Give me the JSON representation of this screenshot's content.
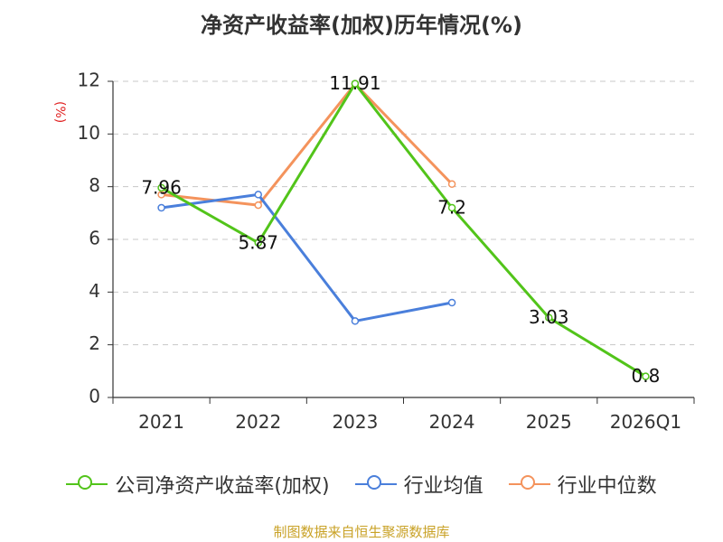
{
  "chart_data": {
    "type": "line",
    "title": "净资产收益率(加权)历年情况(%)",
    "ylabel": "(%)",
    "xlabel": "",
    "categories": [
      "2021",
      "2022",
      "2023",
      "2024",
      "2025",
      "2026Q1"
    ],
    "ylim": [
      0,
      12
    ],
    "yticks": [
      0,
      2,
      4,
      6,
      8,
      10,
      12
    ],
    "grid": true,
    "legend_position": "bottom",
    "series": [
      {
        "name": "公司净资产收益率(加权)",
        "color": "#52c41a",
        "show_labels": true,
        "values": [
          7.96,
          5.87,
          11.91,
          7.2,
          3.03,
          0.8
        ],
        "labels": [
          "7.96",
          "5.87",
          "11.91",
          "7.2",
          "3.03",
          "0.8"
        ]
      },
      {
        "name": "行业均值",
        "color": "#4a7fdb",
        "show_labels": false,
        "values": [
          7.2,
          7.7,
          2.9,
          3.6,
          null,
          null
        ]
      },
      {
        "name": "行业中位数",
        "color": "#f4935c",
        "show_labels": false,
        "values": [
          7.7,
          7.3,
          11.9,
          8.1,
          null,
          null
        ]
      }
    ]
  },
  "source": "制图数据来自恒生聚源数据库"
}
